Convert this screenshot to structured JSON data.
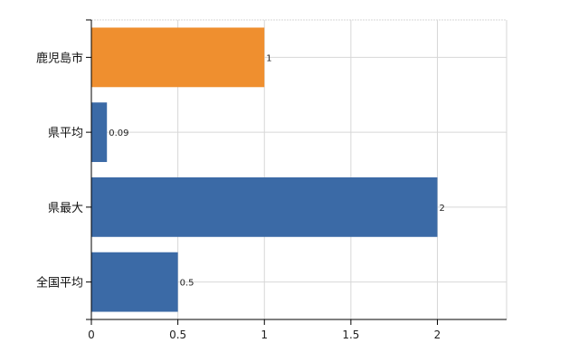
{
  "chart_data": {
    "type": "bar",
    "orientation": "horizontal",
    "categories": [
      "鹿児島市",
      "県平均",
      "県最大",
      "全国平均"
    ],
    "values": [
      1,
      0.09,
      2,
      0.5
    ],
    "data_labels": [
      "1",
      "0.09",
      "2",
      "0.5"
    ],
    "x_ticks": [
      "0",
      "0.5",
      "1",
      "1.5",
      "2"
    ],
    "xlim": [
      0,
      2.4
    ],
    "grid": true,
    "colors": {
      "highlight": "#ef8f2f",
      "default": "#3b6aa6",
      "grid": "#d7d7d7",
      "axis": "#000000"
    }
  }
}
